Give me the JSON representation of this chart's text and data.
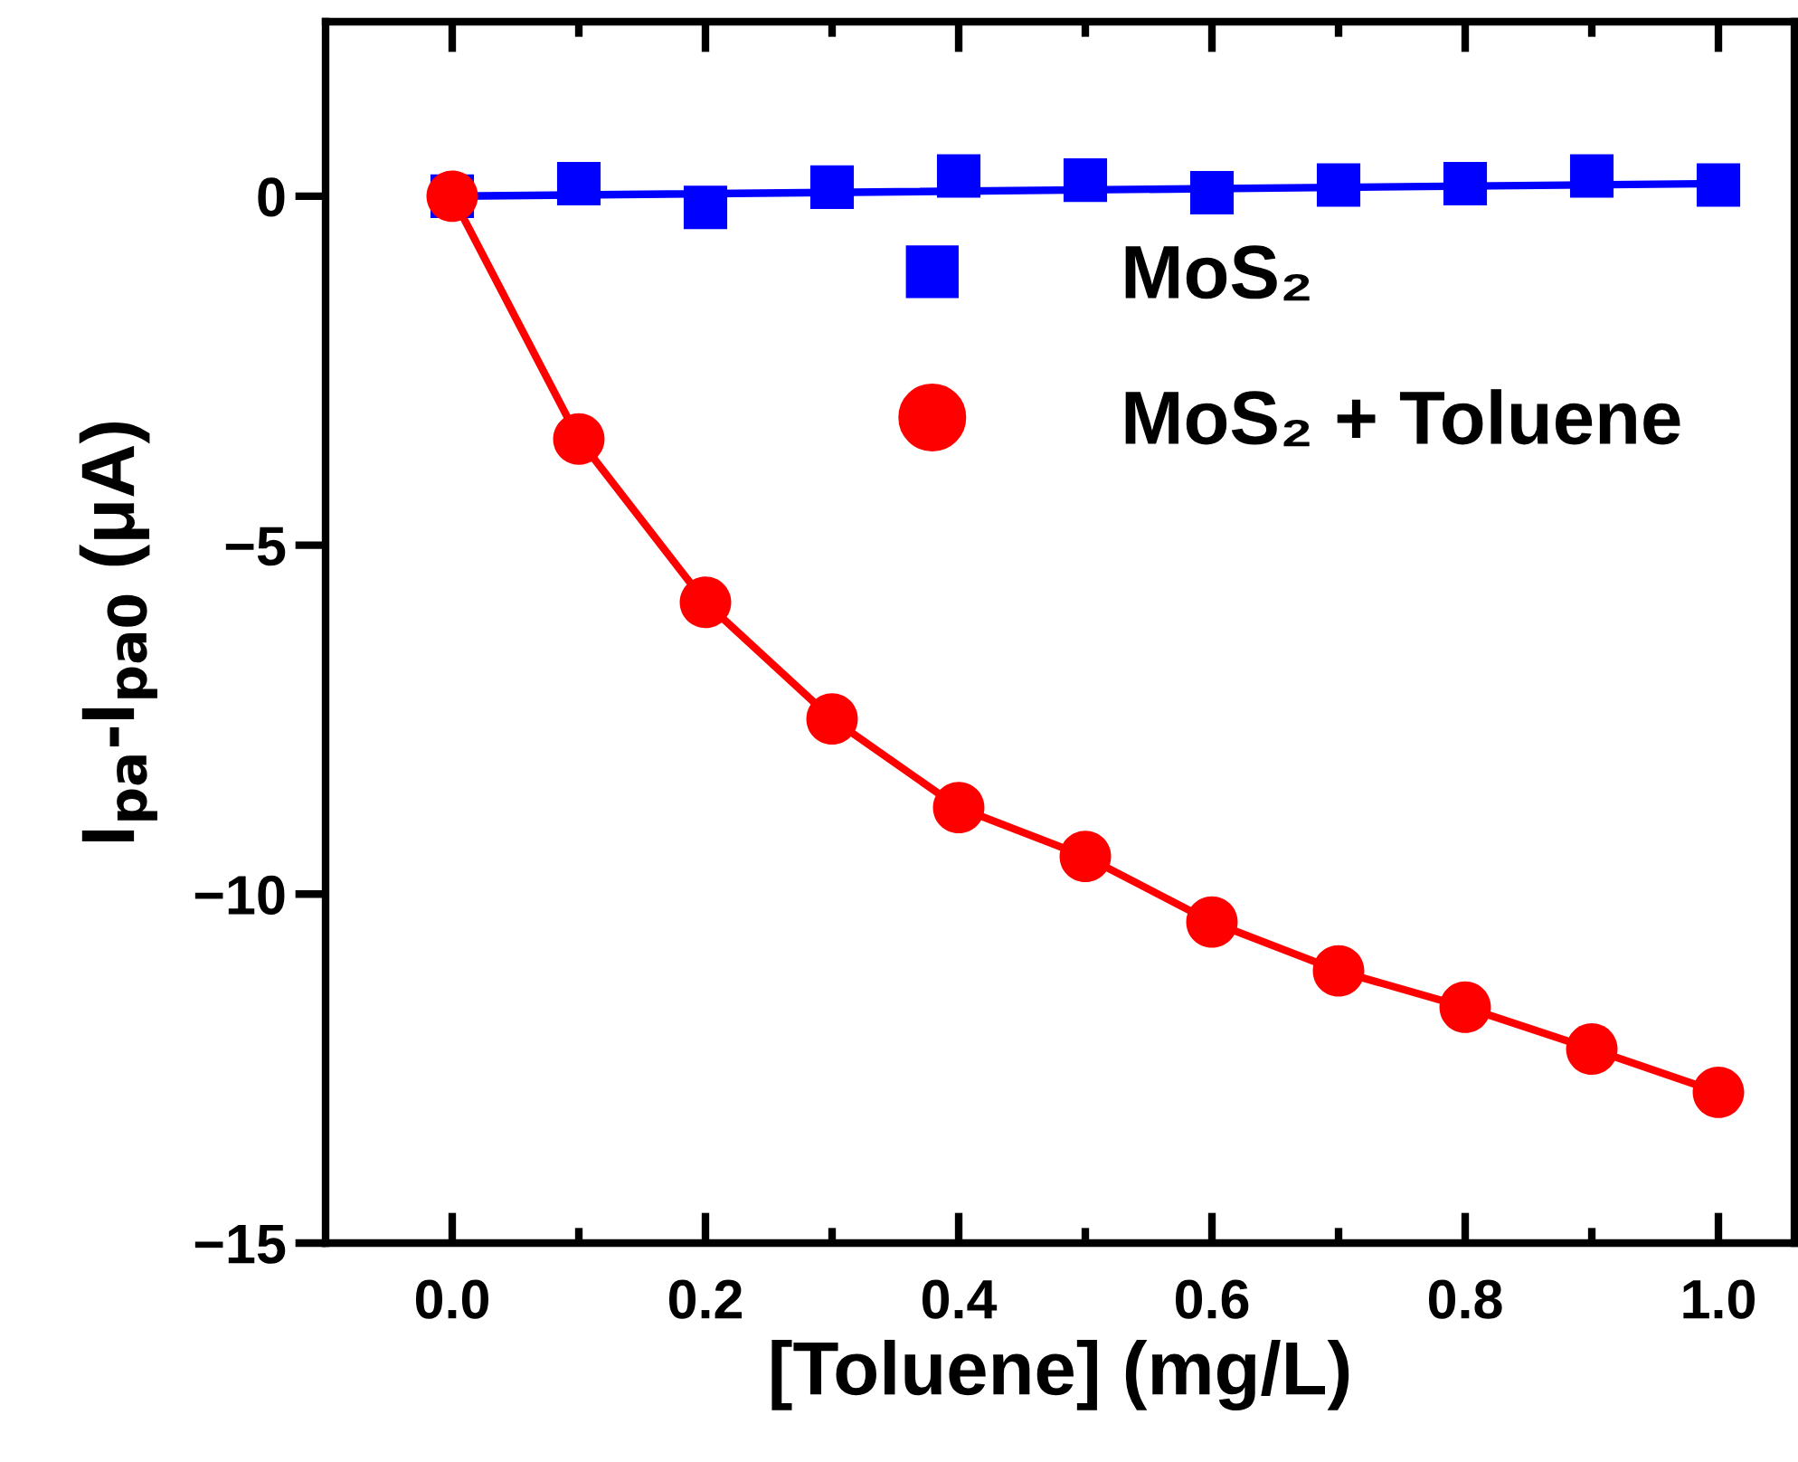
{
  "chart_data": {
    "type": "scatter",
    "xlabel": "[Toluene] (mg/L)",
    "ylabel": "I$_{pa}$-I$_{pa0}$ (μA)",
    "xlim": [
      -0.1,
      1.06
    ],
    "ylim": [
      -15,
      2.5
    ],
    "xticks": [
      {
        "value": 0,
        "label": "0.0"
      },
      0.2,
      0.4,
      0.6,
      0.8,
      {
        "value": 1,
        "label": "1.0"
      }
    ],
    "yticks": [
      {
        "value": -15,
        "label": "−15"
      },
      {
        "value": -10,
        "label": "−10"
      },
      {
        "value": -5,
        "label": "−5"
      },
      0
    ],
    "grid": false,
    "legend": "right",
    "series": [
      {
        "type": "line",
        "color": "#0000ff",
        "line_style": "solid",
        "marker": "none",
        "x": [
          0,
          1
        ],
        "values": [
          0,
          0.18
        ]
      },
      {
        "type": "line",
        "color": "#ff0000",
        "line_style": "solid",
        "marker": "none",
        "x": [
          0,
          0.1,
          0.2,
          0.3,
          0.4,
          0.5,
          0.6,
          0.7,
          0.8,
          0.9,
          1.0
        ],
        "values": [
          0,
          -3.48,
          -5.82,
          -7.49,
          -8.76,
          -9.46,
          -10.4,
          -11.1,
          -11.62,
          -12.22,
          -12.84
        ]
      },
      {
        "type": "scatter",
        "name": "MoS₂",
        "color": "#0000ff",
        "marker": "square",
        "x": [
          0,
          0.1,
          0.2,
          0.3,
          0.4,
          0.5,
          0.6,
          0.7,
          0.8,
          0.9,
          1.0
        ],
        "values": [
          0,
          0.18,
          -0.16,
          0.13,
          0.29,
          0.23,
          0.05,
          0.16,
          0.18,
          0.29,
          0.16
        ]
      },
      {
        "name": "MoS₂ + Toluene",
        "color": "#ff0000",
        "marker": "circle",
        "x": [
          0,
          0.1,
          0.2,
          0.3,
          0.4,
          0.5,
          0.6,
          0.7,
          0.8,
          0.9,
          1.0
        ],
        "values": [
          0,
          -3.48,
          -5.82,
          -7.49,
          -8.76,
          -9.46,
          -10.4,
          -11.1,
          -11.62,
          -12.22,
          -12.84
        ]
      }
    ]
  }
}
